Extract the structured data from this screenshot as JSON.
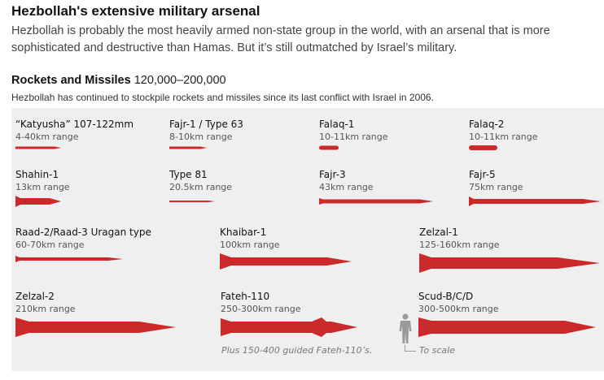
{
  "header": {
    "title": "Hezbollah's extensive military arsenal",
    "intro": "Hezbollah is probably the most heavily armed non-state group in the world, with an arsenal that is more sophisticated and destructive than Hamas. But it’s still outmatched by Israel’s military."
  },
  "section": {
    "title": "Rockets and Missiles",
    "count": "120,000–200,000",
    "subtitle": "Hezbollah has continued to stockpile rockets and missiles since its last conflict with Israel in 2006."
  },
  "accent_color": "#cc2a2a",
  "weapons": [
    {
      "name": "“Katyusha” 107-122mm",
      "range": "4-40km range"
    },
    {
      "name": "Fajr-1 / Type 63",
      "range": "8-10km range"
    },
    {
      "name": "Falaq-1",
      "range": "10-11km range"
    },
    {
      "name": "Falaq-2",
      "range": "10-11km range"
    },
    {
      "name": "Shahin-1",
      "range": "13km range"
    },
    {
      "name": "Type 81",
      "range": "20.5km range"
    },
    {
      "name": "Fajr-3",
      "range": "43km range"
    },
    {
      "name": "Fajr-5",
      "range": "75km range"
    },
    {
      "name": "Raad-2/Raad-3 Uragan type",
      "range": "60-70km range"
    },
    {
      "name": "Khaibar-1",
      "range": "100km range"
    },
    {
      "name": "Zelzal-1",
      "range": "125-160km range"
    },
    {
      "name": "Zelzal-2",
      "range": "210km range"
    },
    {
      "name": "Fateh-110",
      "range": "250-300km range"
    },
    {
      "name": "Scud-B/C/D",
      "range": "300-500km range"
    }
  ],
  "notes": {
    "fateh": "Plus 150-400 guided Fateh-110’s.",
    "scale": "To scale"
  },
  "icons": {
    "missile": "missile-icon",
    "person": "person-silhouette-icon"
  }
}
